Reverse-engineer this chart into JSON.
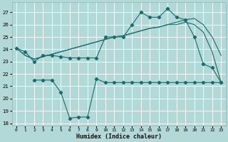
{
  "xlabel": "Humidex (Indice chaleur)",
  "bg_color": "#b2d8d8",
  "grid_color": "#ffffff",
  "line_color": "#1a6b6b",
  "xlim": [
    -0.5,
    23.5
  ],
  "ylim": [
    17.8,
    27.8
  ],
  "yticks": [
    18,
    19,
    20,
    21,
    22,
    23,
    24,
    25,
    26,
    27
  ],
  "xticks": [
    0,
    1,
    2,
    3,
    4,
    5,
    6,
    7,
    8,
    9,
    10,
    11,
    12,
    13,
    14,
    15,
    16,
    17,
    18,
    19,
    20,
    21,
    22,
    23
  ],
  "line1_x": [
    0,
    1,
    2,
    3,
    4,
    5,
    6,
    7,
    8,
    9,
    10,
    11,
    12,
    13,
    14,
    15,
    16,
    17,
    18,
    19,
    20,
    21,
    22,
    23
  ],
  "line1_y": [
    24.1,
    23.8,
    23.0,
    23.5,
    23.5,
    23.4,
    23.3,
    23.3,
    23.3,
    23.3,
    25.0,
    25.0,
    25.0,
    26.0,
    27.0,
    26.6,
    26.6,
    27.3,
    26.6,
    26.4,
    25.0,
    22.8,
    22.5,
    21.3
  ],
  "line2_x": [
    0,
    1,
    2,
    3,
    4,
    5,
    6,
    7,
    8,
    9,
    10,
    11,
    12,
    13,
    14,
    15,
    16,
    17,
    18,
    19,
    20,
    21,
    22,
    23
  ],
  "line2_y": [
    24.1,
    23.5,
    23.2,
    23.4,
    23.6,
    23.8,
    24.0,
    24.2,
    24.4,
    24.6,
    24.8,
    25.0,
    25.1,
    25.3,
    25.5,
    25.7,
    25.8,
    26.0,
    26.2,
    26.4,
    26.5,
    26.0,
    25.0,
    23.5
  ],
  "line3_x": [
    0,
    1,
    2,
    3,
    4,
    5,
    6,
    7,
    8,
    9,
    10,
    11,
    12,
    13,
    14,
    15,
    16,
    17,
    18,
    19,
    20,
    21,
    22,
    23
  ],
  "line3_y": [
    24.1,
    23.5,
    23.2,
    23.4,
    23.6,
    23.8,
    24.0,
    24.2,
    24.4,
    24.6,
    24.8,
    25.0,
    25.1,
    25.3,
    25.5,
    25.7,
    25.8,
    26.0,
    26.0,
    26.2,
    26.0,
    25.4,
    23.8,
    21.3
  ],
  "line4_x": [
    2,
    3,
    4,
    5,
    6,
    7,
    8,
    9,
    10,
    11,
    12,
    13,
    14,
    15,
    16,
    17,
    18,
    19,
    20,
    21,
    22,
    23
  ],
  "line4_y": [
    21.5,
    21.5,
    21.5,
    20.5,
    18.4,
    18.5,
    18.5,
    21.6,
    21.3,
    21.3,
    21.3,
    21.3,
    21.3,
    21.3,
    21.3,
    21.3,
    21.3,
    21.3,
    21.3,
    21.3,
    21.3,
    21.3
  ]
}
